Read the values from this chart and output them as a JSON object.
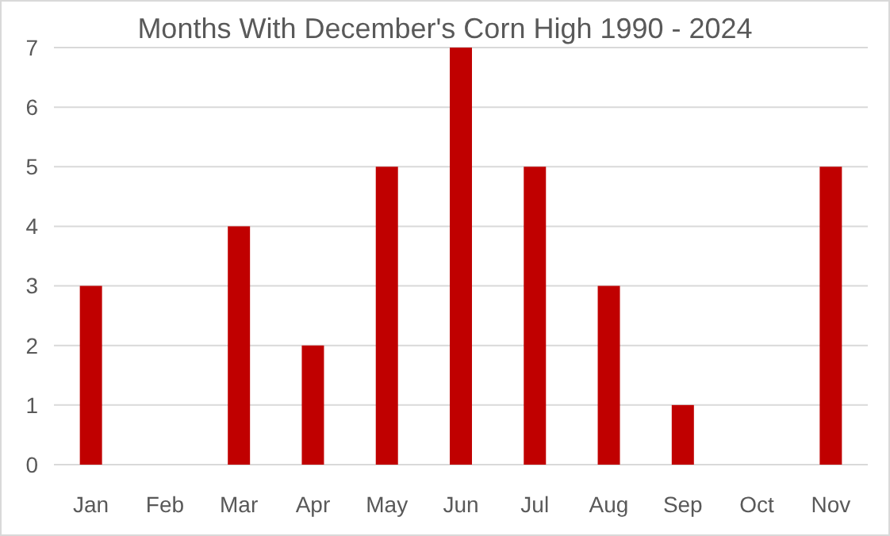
{
  "chart_data": {
    "type": "bar",
    "title": "Months With December's Corn High 1990 - 2024",
    "categories": [
      "Jan",
      "Feb",
      "Mar",
      "Apr",
      "May",
      "Jun",
      "Jul",
      "Aug",
      "Sep",
      "Oct",
      "Nov"
    ],
    "values": [
      3,
      0,
      4,
      2,
      5,
      7,
      5,
      3,
      1,
      0,
      5
    ],
    "color": "#c00000",
    "ylim": [
      0,
      7
    ],
    "yticks": [
      0,
      1,
      2,
      3,
      4,
      5,
      6,
      7
    ],
    "grid": "y"
  }
}
